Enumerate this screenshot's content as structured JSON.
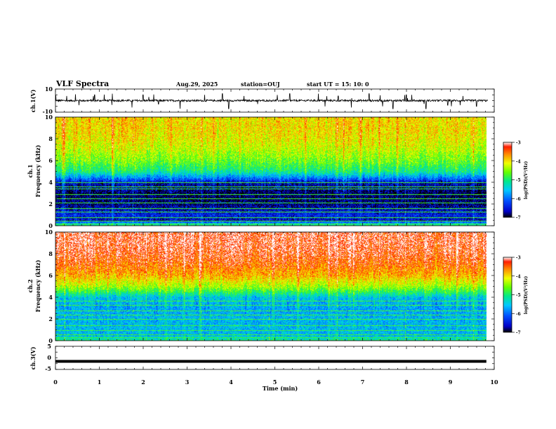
{
  "header": {
    "title": "VLF Spectra",
    "date": "Aug.29, 2025",
    "station": "station=OUJ",
    "start": "start  UT  =   15: 10: 0"
  },
  "panels": {
    "ch1_waveform": {
      "ylabel": "ch.1(V)",
      "yticks": [
        "10",
        "-10"
      ]
    },
    "ch1_spectrogram": {
      "ylabel_top": "ch.1",
      "ylabel": "Frequency  (kHz)",
      "yticks": [
        "0",
        "2",
        "4",
        "6",
        "8",
        "10"
      ],
      "colorbar_label": "log(PSD)(V²/Hz)",
      "colorbar_ticks": [
        "-3",
        "-4",
        "-5",
        "-6",
        "-7"
      ]
    },
    "ch2_spectrogram": {
      "ylabel_top": "ch.2",
      "ylabel": "Frequency  (kHz)",
      "yticks": [
        "0",
        "2",
        "4",
        "6",
        "8",
        "10"
      ],
      "colorbar_label": "log(PSD)(V²/Hz)",
      "colorbar_ticks": [
        "-3",
        "-4",
        "-5",
        "-6",
        "-7"
      ]
    },
    "ch3_waveform": {
      "ylabel": "ch.3(V)",
      "yticks": [
        "5",
        "0",
        "-5"
      ]
    },
    "xaxis": {
      "xlabel": "Time  (min)",
      "xticks": [
        "0",
        "1",
        "2",
        "3",
        "4",
        "5",
        "6",
        "7",
        "8",
        "9",
        "10"
      ]
    }
  },
  "chart_data": [
    {
      "type": "line",
      "panel": "ch1_waveform",
      "xlim": [
        0,
        10
      ],
      "ylim": [
        -10,
        10
      ],
      "baseline_v": 0,
      "note_data": "noisy waveform with spikes",
      "spikes": [
        {
          "x": 0.25,
          "y": 4
        },
        {
          "x": 0.55,
          "y": -4
        },
        {
          "x": 0.9,
          "y": 5
        },
        {
          "x": 1.3,
          "y": 6
        },
        {
          "x": 1.75,
          "y": -6
        },
        {
          "x": 2.0,
          "y": 5
        },
        {
          "x": 2.35,
          "y": -3
        },
        {
          "x": 2.7,
          "y": -6
        },
        {
          "x": 2.85,
          "y": -7
        },
        {
          "x": 3.4,
          "y": 5
        },
        {
          "x": 3.8,
          "y": 6
        },
        {
          "x": 3.95,
          "y": -7
        },
        {
          "x": 4.3,
          "y": 4
        },
        {
          "x": 4.6,
          "y": -3
        },
        {
          "x": 5.35,
          "y": 6
        },
        {
          "x": 5.75,
          "y": -6
        },
        {
          "x": 6.0,
          "y": 6
        },
        {
          "x": 6.45,
          "y": 4
        },
        {
          "x": 6.75,
          "y": -6
        },
        {
          "x": 7.15,
          "y": 6
        },
        {
          "x": 7.45,
          "y": -5
        },
        {
          "x": 7.7,
          "y": -7
        },
        {
          "x": 8.0,
          "y": 5
        },
        {
          "x": 8.45,
          "y": -7
        },
        {
          "x": 8.95,
          "y": -4
        },
        {
          "x": 9.3,
          "y": 4
        },
        {
          "x": 9.6,
          "y": -5
        }
      ]
    },
    {
      "type": "heatmap",
      "panel": "ch1_spectrogram",
      "xlim": [
        0,
        10
      ],
      "ylim": [
        0,
        10
      ],
      "xlabel": "Time  (min)",
      "ylabel": "Frequency  (kHz)",
      "zlim": [
        -7,
        -3
      ],
      "profile_khz": [
        0,
        0.5,
        1,
        2,
        3,
        4,
        4.5,
        5,
        6,
        7,
        8,
        9,
        10
      ],
      "profile_log_psd": [
        -4.8,
        -6.6,
        -6.4,
        -6.8,
        -6.9,
        -6.6,
        -5.8,
        -5.1,
        -4.6,
        -4.3,
        -4.1,
        -4.0,
        -4.0
      ],
      "line_freqs_khz": [
        0.2,
        0.45,
        0.8,
        1.3,
        1.6,
        2.1,
        2.5,
        2.9,
        3.4,
        3.6,
        4.0
      ]
    },
    {
      "type": "heatmap",
      "panel": "ch2_spectrogram",
      "xlim": [
        0,
        10
      ],
      "ylim": [
        0,
        10
      ],
      "xlabel": "Time  (min)",
      "ylabel": "Frequency  (kHz)",
      "zlim": [
        -7,
        -3
      ],
      "profile_khz": [
        0,
        0.5,
        1,
        2,
        3,
        4,
        4.5,
        5,
        6,
        7,
        8,
        9,
        10
      ],
      "profile_log_psd": [
        -5.0,
        -5.6,
        -5.6,
        -5.6,
        -5.7,
        -5.5,
        -4.9,
        -4.4,
        -3.8,
        -3.5,
        -3.3,
        -3.2,
        -3.2
      ],
      "line_freqs_khz": [
        0.3,
        0.6,
        1.0,
        1.4,
        2.0,
        2.4,
        2.8,
        3.3,
        3.7
      ]
    },
    {
      "type": "line",
      "panel": "ch3_waveform",
      "xlim": [
        0,
        10
      ],
      "ylim": [
        -5,
        5
      ],
      "baseline_v": -1.5,
      "note_data": "flat constant signal"
    }
  ]
}
